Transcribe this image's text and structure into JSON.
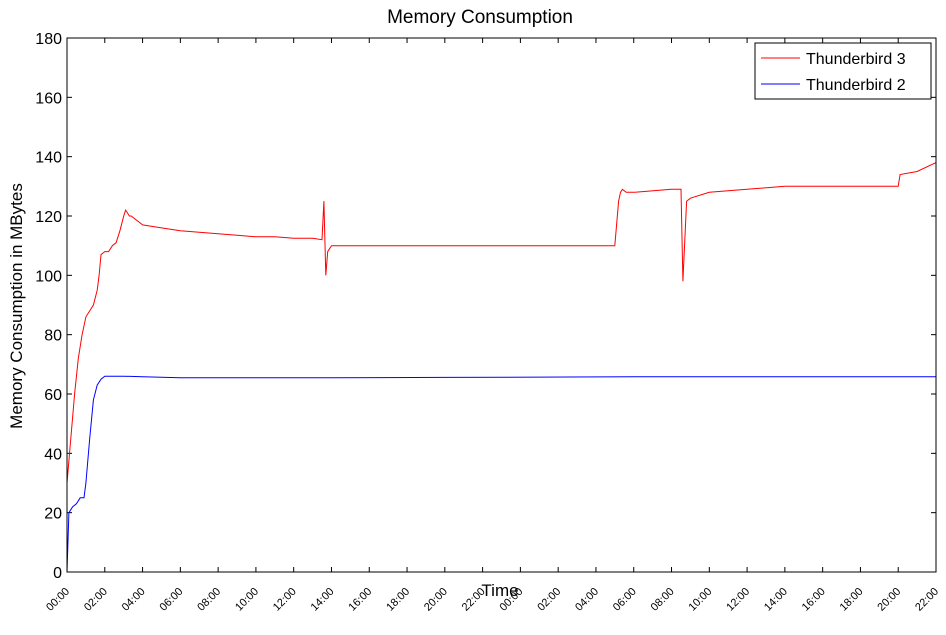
{
  "chart_data": {
    "type": "line",
    "title": "Memory Consumption",
    "xlabel": "Time",
    "ylabel": "Memory Consumption in MBytes",
    "ylim": [
      0,
      180
    ],
    "yticks": [
      0,
      20,
      40,
      60,
      80,
      100,
      120,
      140,
      160,
      180
    ],
    "xlim_hours": [
      0,
      46
    ],
    "xtick_labels": [
      "00:00",
      "02:00",
      "04:00",
      "06:00",
      "08:00",
      "10:00",
      "12:00",
      "14:00",
      "16:00",
      "18:00",
      "20:00",
      "22:00",
      "00:00",
      "02:00",
      "04:00",
      "06:00",
      "08:00",
      "10:00",
      "12:00",
      "14:00",
      "16:00",
      "18:00",
      "20:00",
      "22:00"
    ],
    "grid": false,
    "legend_position": "top-right",
    "colors": {
      "tb3": "#ff0000",
      "tb2": "#0000ff"
    },
    "series": [
      {
        "name": "Thunderbird 3",
        "color": "#ff0000",
        "x": [
          0,
          0.2,
          0.4,
          0.6,
          0.8,
          1.0,
          1.2,
          1.4,
          1.6,
          1.7,
          1.8,
          2.0,
          2.2,
          2.4,
          2.6,
          2.8,
          3.0,
          3.1,
          3.2,
          3.3,
          3.4,
          3.6,
          3.8,
          4.0,
          5.0,
          6.0,
          7.0,
          8.0,
          9.0,
          10.0,
          11.0,
          12.0,
          13.0,
          13.5,
          13.6,
          13.7,
          13.8,
          14.0,
          16.0,
          18.0,
          20.0,
          22.0,
          24.0,
          26.0,
          28.0,
          29.0,
          29.2,
          29.3,
          29.4,
          29.6,
          30.0,
          32.0,
          32.5,
          32.6,
          32.8,
          33.0,
          34.0,
          36.0,
          38.0,
          40.0,
          42.0,
          44.0,
          44.1,
          45.0,
          46.0
        ],
        "values": [
          30,
          45,
          60,
          72,
          80,
          86,
          88,
          90,
          95,
          100,
          107,
          108,
          108,
          110,
          111,
          115,
          120,
          122,
          121,
          120,
          120,
          119,
          118,
          117,
          116,
          115,
          114.5,
          114,
          113.5,
          113,
          113,
          112.5,
          112.5,
          112,
          125,
          100,
          108,
          110,
          110,
          110,
          110,
          110,
          110,
          110,
          110,
          110,
          125,
          128,
          129,
          128,
          128,
          129,
          129,
          98,
          125,
          126,
          128,
          129,
          130,
          130,
          130,
          130,
          134,
          135,
          138
        ]
      },
      {
        "name": "Thunderbird 2",
        "color": "#0000ff",
        "x": [
          0,
          0.1,
          0.2,
          0.3,
          0.5,
          0.7,
          0.9,
          1.0,
          1.2,
          1.4,
          1.6,
          1.8,
          2.0,
          2.2,
          2.5,
          3.0,
          4.0,
          6.0,
          10.0,
          14.0,
          20.0,
          30.0,
          40.0,
          46.0
        ],
        "values": [
          0,
          20,
          21,
          22,
          23,
          25,
          25,
          30,
          45,
          58,
          63,
          65,
          66,
          66,
          66,
          66,
          65.8,
          65.5,
          65.5,
          65.5,
          65.6,
          65.8,
          65.8,
          65.8
        ]
      }
    ]
  }
}
